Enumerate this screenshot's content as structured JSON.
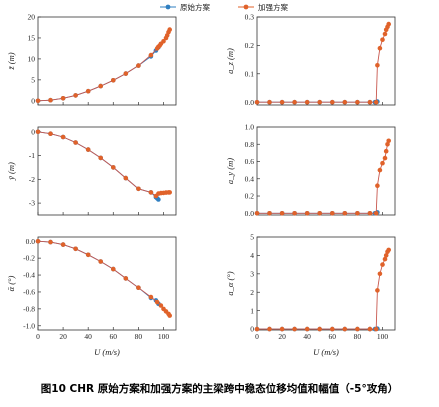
{
  "caption": "图10 CHR 原始方案和加强方案的主梁跨中稳态位移均值和幅值（-5°攻角）",
  "colors": {
    "original": "#2f7fc1",
    "enhanced": "#e0622a",
    "line": "#c8584f",
    "axis": "#333333"
  },
  "legend": {
    "original": "原始方案",
    "enhanced": "加强方案"
  },
  "x_label": "U (m/s)",
  "chart_data": [
    {
      "id": "z-mean",
      "type": "line",
      "ylabel": "z̄ (m)",
      "xlim": [
        0,
        110
      ],
      "ylim": [
        -1,
        20
      ],
      "xticks": [
        0,
        20,
        40,
        60,
        80,
        100
      ],
      "yticks": [
        0,
        5,
        10,
        15,
        20
      ],
      "xtick_labels": [
        "",
        "",
        "",
        "",
        "",
        ""
      ],
      "ytick_labels": [
        "0",
        "5",
        "10",
        "15",
        "20"
      ],
      "series": [
        {
          "name": "原始方案",
          "x": [
            0,
            10,
            20,
            30,
            40,
            50,
            60,
            70,
            80,
            90,
            94,
            96
          ],
          "y": [
            0,
            0.15,
            0.6,
            1.3,
            2.3,
            3.5,
            4.9,
            6.5,
            8.4,
            10.6,
            12.0,
            12.8
          ]
        },
        {
          "name": "加强方案",
          "x": [
            0,
            10,
            20,
            30,
            40,
            50,
            60,
            70,
            80,
            90,
            95,
            96,
            97,
            98,
            100,
            102,
            103,
            104,
            105
          ],
          "y": [
            0,
            0.15,
            0.6,
            1.3,
            2.3,
            3.5,
            4.9,
            6.5,
            8.4,
            10.9,
            12.5,
            12.9,
            13.2,
            13.6,
            14.2,
            15.0,
            15.6,
            16.4,
            17.0
          ]
        }
      ]
    },
    {
      "id": "z-amp",
      "type": "line",
      "ylabel": "a_z (m)",
      "xlim": [
        0,
        110
      ],
      "ylim": [
        -0.01,
        0.3
      ],
      "xticks": [
        0,
        20,
        40,
        60,
        80,
        100
      ],
      "yticks": [
        0,
        0.1,
        0.2,
        0.3
      ],
      "xtick_labels": [
        "",
        "",
        "",
        "",
        "",
        ""
      ],
      "ytick_labels": [
        "0.0",
        "0.1",
        "0.2",
        "0.3"
      ],
      "series": [
        {
          "name": "原始方案",
          "x": [
            0,
            10,
            20,
            30,
            40,
            50,
            60,
            70,
            80,
            90,
            94,
            96
          ],
          "y": [
            0,
            0,
            0,
            0,
            0,
            0,
            0,
            0,
            0,
            0,
            0,
            0.002
          ]
        },
        {
          "name": "加强方案",
          "x": [
            0,
            10,
            20,
            30,
            40,
            50,
            60,
            70,
            80,
            90,
            95,
            96,
            98,
            100,
            102,
            103,
            104,
            105
          ],
          "y": [
            0,
            0,
            0,
            0,
            0,
            0,
            0,
            0,
            0,
            0,
            0,
            0.13,
            0.19,
            0.22,
            0.24,
            0.255,
            0.265,
            0.275
          ]
        }
      ]
    },
    {
      "id": "y-mean",
      "type": "line",
      "ylabel": "ȳ (m)",
      "xlim": [
        0,
        110
      ],
      "ylim": [
        -3.5,
        0.2
      ],
      "xticks": [
        0,
        20,
        40,
        60,
        80,
        100
      ],
      "yticks": [
        0,
        -1,
        -2,
        -3
      ],
      "xtick_labels": [
        "",
        "",
        "",
        "",
        "",
        ""
      ],
      "ytick_labels": [
        "0",
        "-1",
        "-2",
        "-3"
      ],
      "series": [
        {
          "name": "原始方案",
          "x": [
            0,
            10,
            20,
            30,
            40,
            50,
            60,
            70,
            80,
            90,
            94,
            95,
            96
          ],
          "y": [
            0,
            -0.08,
            -0.22,
            -0.45,
            -0.75,
            -1.1,
            -1.5,
            -1.95,
            -2.4,
            -2.55,
            -2.75,
            -2.8,
            -2.85
          ]
        },
        {
          "name": "加强方案",
          "x": [
            0,
            10,
            20,
            30,
            40,
            50,
            60,
            70,
            80,
            90,
            94,
            96,
            98,
            100,
            102,
            104,
            105
          ],
          "y": [
            0,
            -0.08,
            -0.22,
            -0.45,
            -0.75,
            -1.1,
            -1.5,
            -1.95,
            -2.4,
            -2.55,
            -2.7,
            -2.6,
            -2.58,
            -2.57,
            -2.56,
            -2.55,
            -2.55
          ]
        }
      ]
    },
    {
      "id": "y-amp",
      "type": "line",
      "ylabel": "a_y (m)",
      "xlim": [
        0,
        110
      ],
      "ylim": [
        -0.02,
        1.0
      ],
      "xticks": [
        0,
        20,
        40,
        60,
        80,
        100
      ],
      "yticks": [
        0,
        0.2,
        0.4,
        0.6,
        0.8,
        1.0
      ],
      "xtick_labels": [
        "",
        "",
        "",
        "",
        "",
        ""
      ],
      "ytick_labels": [
        "0.0",
        "0.2",
        "0.4",
        "0.6",
        "0.8",
        "1.0"
      ],
      "series": [
        {
          "name": "原始方案",
          "x": [
            0,
            10,
            20,
            30,
            40,
            50,
            60,
            70,
            80,
            90,
            94,
            96
          ],
          "y": [
            0,
            0,
            0,
            0,
            0,
            0,
            0,
            0,
            0,
            0,
            0,
            0.01
          ]
        },
        {
          "name": "加强方案",
          "x": [
            0,
            10,
            20,
            30,
            40,
            50,
            60,
            70,
            80,
            90,
            95,
            96,
            98,
            100,
            102,
            103,
            104,
            105
          ],
          "y": [
            0,
            0,
            0,
            0,
            0,
            0,
            0,
            0,
            0,
            0,
            0,
            0.32,
            0.5,
            0.58,
            0.64,
            0.72,
            0.8,
            0.84
          ]
        }
      ]
    },
    {
      "id": "alpha-mean",
      "type": "line",
      "ylabel": "ᾱ (°)",
      "xlim": [
        0,
        110
      ],
      "ylim": [
        -1.05,
        0.05
      ],
      "xticks": [
        0,
        20,
        40,
        60,
        80,
        100
      ],
      "yticks": [
        0,
        -0.2,
        -0.4,
        -0.6,
        -0.8,
        -1.0
      ],
      "xtick_labels": [
        "0",
        "20",
        "40",
        "60",
        "80",
        "100"
      ],
      "ytick_labels": [
        "0.0",
        "-0.2",
        "-0.4",
        "-0.6",
        "-0.8",
        "-1.0"
      ],
      "series": [
        {
          "name": "原始方案",
          "x": [
            0,
            10,
            20,
            30,
            40,
            50,
            60,
            70,
            80,
            90,
            94,
            96
          ],
          "y": [
            0,
            -0.01,
            -0.04,
            -0.09,
            -0.16,
            -0.24,
            -0.33,
            -0.44,
            -0.55,
            -0.67,
            -0.7,
            -0.74
          ]
        },
        {
          "name": "加强方案",
          "x": [
            0,
            10,
            20,
            30,
            40,
            50,
            60,
            70,
            80,
            90,
            95,
            98,
            100,
            102,
            104,
            105
          ],
          "y": [
            0,
            -0.01,
            -0.04,
            -0.09,
            -0.16,
            -0.24,
            -0.33,
            -0.44,
            -0.55,
            -0.66,
            -0.72,
            -0.76,
            -0.8,
            -0.83,
            -0.86,
            -0.88
          ]
        }
      ]
    },
    {
      "id": "alpha-amp",
      "type": "line",
      "ylabel": "a_α (°)",
      "xlim": [
        0,
        110
      ],
      "ylim": [
        -0.05,
        5
      ],
      "xticks": [
        0,
        20,
        40,
        60,
        80,
        100
      ],
      "yticks": [
        0,
        1,
        2,
        3,
        4,
        5
      ],
      "xtick_labels": [
        "0",
        "20",
        "40",
        "60",
        "80",
        "100"
      ],
      "ytick_labels": [
        "0",
        "1",
        "2",
        "3",
        "4",
        "5"
      ],
      "series": [
        {
          "name": "原始方案",
          "x": [
            0,
            10,
            20,
            30,
            40,
            50,
            60,
            70,
            80,
            90,
            94,
            96
          ],
          "y": [
            0,
            0,
            0,
            0,
            0,
            0,
            0,
            0,
            0,
            0,
            0,
            0.02
          ]
        },
        {
          "name": "加强方案",
          "x": [
            0,
            10,
            20,
            30,
            40,
            50,
            60,
            70,
            80,
            90,
            95,
            96,
            98,
            100,
            102,
            103,
            104,
            105
          ],
          "y": [
            0,
            0,
            0,
            0,
            0,
            0,
            0,
            0,
            0,
            0,
            0,
            2.1,
            3.0,
            3.5,
            3.8,
            4.0,
            4.2,
            4.3
          ]
        }
      ]
    }
  ]
}
